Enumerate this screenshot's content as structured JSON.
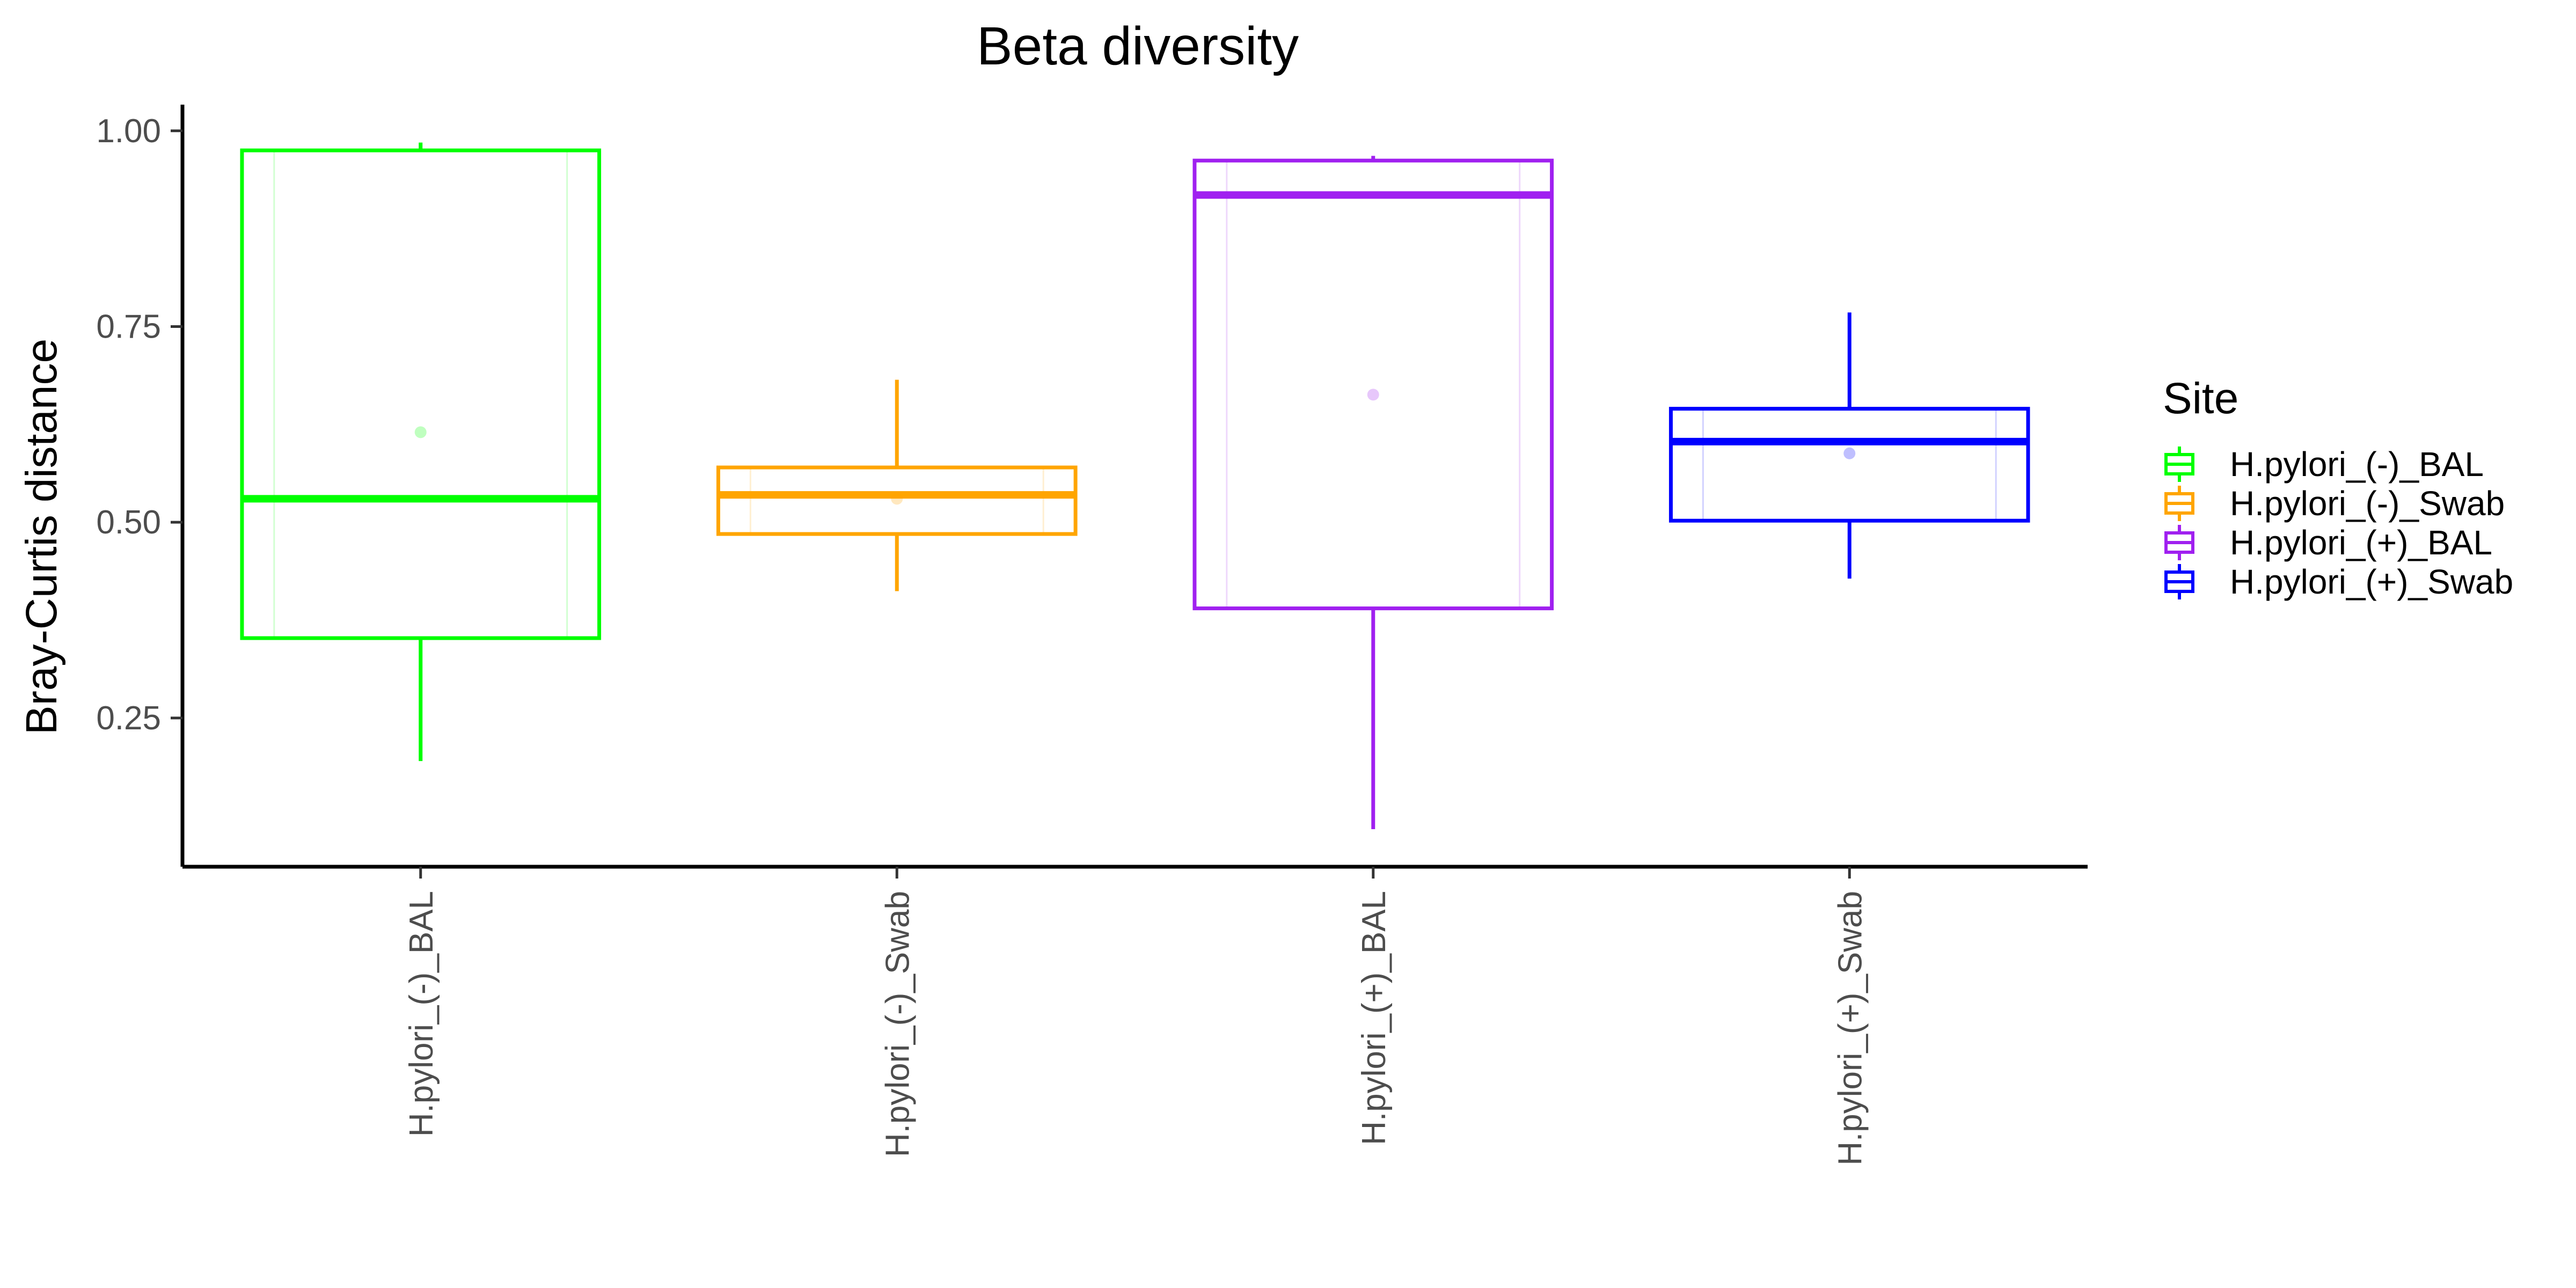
{
  "chart_data": {
    "type": "boxplot",
    "title": "Beta diversity",
    "xlabel": "",
    "ylabel": "Bray-Curtis distance",
    "ylim": [
      0.06,
      1.03
    ],
    "yticks": [
      "0.25",
      "0.50",
      "0.75",
      "1.00"
    ],
    "grid": false,
    "legend": {
      "title": "Site",
      "position": "right"
    },
    "categories": [
      "H.pylori_(-)_BAL",
      "H.pylori_(-)_Swab",
      "H.pylori_(+)_BAL",
      "H.pylori_(+)_Swab"
    ],
    "series": [
      {
        "name": "H.pylori_(-)_BAL",
        "color": "#00ff00",
        "min": 0.195,
        "q1": 0.352,
        "median": 0.53,
        "q3": 0.975,
        "max": 0.985,
        "mean": 0.615
      },
      {
        "name": "H.pylori_(-)_Swab",
        "color": "#ffa500",
        "min": 0.412,
        "q1": 0.485,
        "median": 0.535,
        "q3": 0.57,
        "max": 0.682,
        "mean": 0.53
      },
      {
        "name": "H.pylori_(+)_BAL",
        "color": "#a020f0",
        "min": 0.108,
        "q1": 0.39,
        "median": 0.918,
        "q3": 0.962,
        "max": 0.968,
        "mean": 0.663
      },
      {
        "name": "H.pylori_(+)_Swab",
        "color": "#0000ff",
        "min": 0.428,
        "q1": 0.502,
        "median": 0.603,
        "q3": 0.645,
        "max": 0.768,
        "mean": 0.588
      }
    ]
  }
}
